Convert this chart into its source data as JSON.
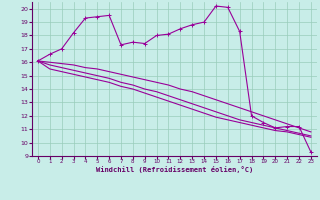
{
  "background_color": "#c8ede8",
  "grid_color": "#99ccbb",
  "line_color": "#990099",
  "spine_color": "#660066",
  "xlabel": "Windchill (Refroidissement éolien,°C)",
  "xlim": [
    -0.5,
    23.5
  ],
  "ylim": [
    9,
    20.5
  ],
  "yticks": [
    9,
    10,
    11,
    12,
    13,
    14,
    15,
    16,
    17,
    18,
    19,
    20
  ],
  "xticks": [
    0,
    1,
    2,
    3,
    4,
    5,
    6,
    7,
    8,
    9,
    10,
    11,
    12,
    13,
    14,
    15,
    16,
    17,
    18,
    19,
    20,
    21,
    22,
    23
  ],
  "series_main": [
    16.1,
    16.6,
    17.0,
    18.2,
    19.3,
    19.4,
    19.5,
    17.3,
    17.5,
    17.4,
    18.0,
    18.1,
    18.5,
    18.8,
    19.0,
    20.2,
    20.1,
    18.3,
    12.0,
    11.5,
    11.1,
    11.2,
    11.2,
    9.3
  ],
  "series_line1": [
    16.1,
    16.0,
    15.9,
    15.8,
    15.6,
    15.5,
    15.3,
    15.1,
    14.9,
    14.7,
    14.5,
    14.3,
    14.0,
    13.8,
    13.5,
    13.2,
    12.9,
    12.6,
    12.3,
    12.0,
    11.7,
    11.4,
    11.1,
    10.8
  ],
  "series_line2": [
    16.1,
    15.8,
    15.6,
    15.4,
    15.2,
    15.0,
    14.8,
    14.5,
    14.3,
    14.0,
    13.8,
    13.5,
    13.2,
    12.9,
    12.6,
    12.3,
    12.0,
    11.7,
    11.5,
    11.3,
    11.1,
    10.9,
    10.7,
    10.5
  ],
  "series_line3": [
    16.1,
    15.5,
    15.3,
    15.1,
    14.9,
    14.7,
    14.5,
    14.2,
    14.0,
    13.7,
    13.4,
    13.1,
    12.8,
    12.5,
    12.2,
    11.9,
    11.7,
    11.5,
    11.3,
    11.1,
    10.9,
    10.8,
    10.6,
    10.4
  ]
}
